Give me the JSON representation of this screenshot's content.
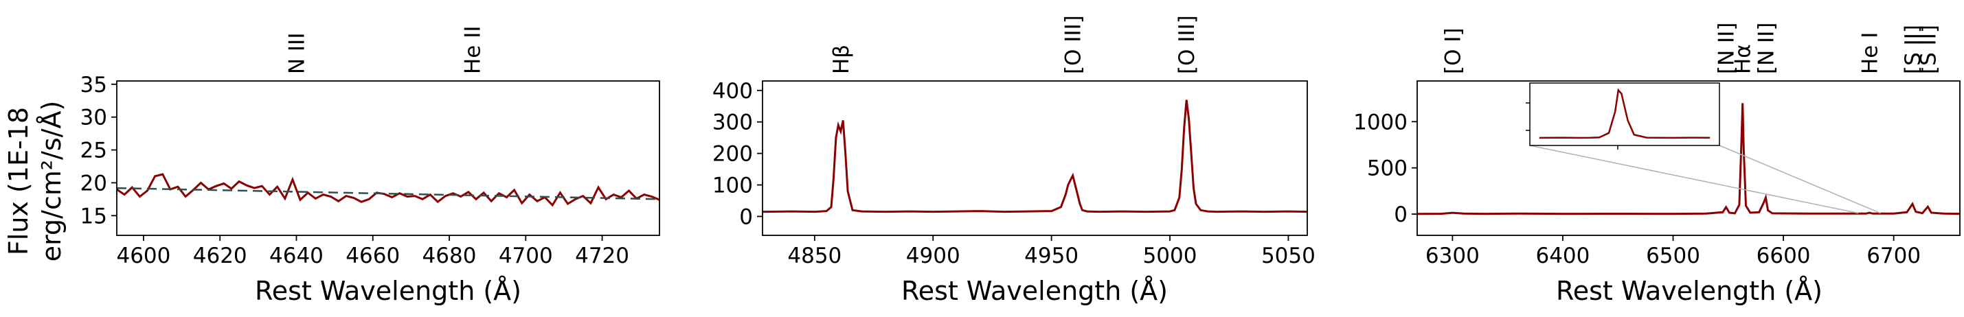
{
  "ylabel_line1": "Flux (1E-18",
  "ylabel_line2": "erg/cm²/s/Å)",
  "chart_data": [
    {
      "type": "line",
      "title": "",
      "xlabel": "Rest Wavelength (Å)",
      "ylabel": "Flux (1E-18 erg/cm²/s/Å)",
      "xlim": [
        4593,
        4735
      ],
      "ylim": [
        12,
        35.5
      ],
      "xticks": [
        4600,
        4620,
        4640,
        4660,
        4680,
        4700,
        4720
      ],
      "yticks": [
        15,
        20,
        25,
        30,
        35
      ],
      "grid": false,
      "line_labels": [
        {
          "text": "N III",
          "x": 4640
        },
        {
          "text": "He II",
          "x": 4686
        }
      ],
      "series": [
        {
          "color": "#8b0000",
          "style": "solid",
          "x": [
            4593,
            4595,
            4597,
            4599,
            4601,
            4603,
            4605,
            4607,
            4609,
            4611,
            4613,
            4615,
            4617,
            4619,
            4621,
            4623,
            4625,
            4627,
            4629,
            4631,
            4633,
            4635,
            4637,
            4639,
            4641,
            4643,
            4645,
            4647,
            4649,
            4651,
            4653,
            4655,
            4657,
            4659,
            4661,
            4663,
            4665,
            4667,
            4669,
            4671,
            4673,
            4675,
            4677,
            4679,
            4681,
            4683,
            4685,
            4687,
            4689,
            4691,
            4693,
            4695,
            4697,
            4699,
            4701,
            4703,
            4705,
            4707,
            4709,
            4711,
            4713,
            4715,
            4717,
            4719,
            4721,
            4723,
            4725,
            4727,
            4729,
            4731,
            4733,
            4735
          ],
          "y": [
            19.0,
            18.2,
            19.3,
            17.9,
            18.8,
            21.0,
            21.3,
            19.0,
            19.4,
            17.9,
            18.9,
            20.0,
            19.0,
            19.5,
            19.9,
            19.1,
            20.2,
            19.6,
            19.2,
            19.5,
            18.2,
            19.4,
            17.6,
            20.5,
            17.4,
            18.5,
            17.6,
            18.2,
            17.9,
            17.2,
            18.0,
            17.7,
            17.1,
            17.5,
            18.5,
            18.3,
            17.8,
            18.4,
            17.9,
            18.0,
            17.5,
            18.2,
            17.1,
            18.0,
            18.4,
            17.9,
            18.6,
            17.5,
            18.5,
            17.2,
            18.4,
            17.8,
            18.9,
            16.9,
            18.2,
            17.2,
            17.8,
            16.6,
            18.5,
            16.8,
            17.5,
            18.0,
            16.9,
            19.3,
            17.5,
            18.2,
            17.8,
            18.8,
            17.6,
            18.2,
            17.9,
            17.4
          ]
        },
        {
          "color": "#2f4f4f",
          "style": "dashed",
          "x": [
            4593,
            4735
          ],
          "y": [
            19.2,
            17.5
          ]
        }
      ]
    },
    {
      "type": "line",
      "title": "",
      "xlabel": "Rest Wavelength (Å)",
      "ylabel": "",
      "xlim": [
        4828,
        5058
      ],
      "ylim": [
        -60,
        430
      ],
      "xticks": [
        4850,
        4900,
        4950,
        5000,
        5050
      ],
      "yticks": [
        0,
        100,
        200,
        300,
        400
      ],
      "grid": false,
      "line_labels": [
        {
          "text": "Hβ",
          "x": 4861
        },
        {
          "text": "[O III]",
          "x": 4959
        },
        {
          "text": "[O III]",
          "x": 5007
        }
      ],
      "series": [
        {
          "color": "#8b0000",
          "style": "solid",
          "x": [
            4828,
            4840,
            4850,
            4855,
            4857,
            4858,
            4859,
            4860,
            4861,
            4862,
            4863,
            4864,
            4866,
            4870,
            4880,
            4890,
            4900,
            4910,
            4920,
            4930,
            4940,
            4950,
            4954,
            4956,
            4957,
            4958,
            4959,
            4960,
            4961,
            4962,
            4963,
            4965,
            4970,
            4980,
            4990,
            5000,
            5002,
            5004,
            5005,
            5006,
            5007,
            5008,
            5009,
            5010,
            5011,
            5013,
            5016,
            5020,
            5030,
            5040,
            5050,
            5058
          ],
          "y": [
            15,
            16,
            15,
            17,
            30,
            120,
            250,
            290,
            270,
            305,
            200,
            80,
            20,
            16,
            15,
            16,
            15,
            16,
            17,
            15,
            16,
            17,
            30,
            70,
            100,
            115,
            130,
            100,
            70,
            40,
            20,
            16,
            15,
            16,
            15,
            16,
            20,
            60,
            150,
            280,
            370,
            310,
            200,
            90,
            40,
            20,
            16,
            15,
            16,
            15,
            16,
            15
          ]
        }
      ]
    },
    {
      "type": "line",
      "title": "",
      "xlabel": "Rest Wavelength (Å)",
      "ylabel": "",
      "xlim": [
        6268,
        6760
      ],
      "ylim": [
        -230,
        1440
      ],
      "xticks": [
        6300,
        6400,
        6500,
        6600,
        6700
      ],
      "yticks": [
        0,
        500,
        1000
      ],
      "grid": false,
      "line_labels": [
        {
          "text": "[O I]",
          "x": 6300
        },
        {
          "text": "[N II]",
          "x": 6548
        },
        {
          "text": "Hα",
          "x": 6563
        },
        {
          "text": "[N II]",
          "x": 6584
        },
        {
          "text": "He I",
          "x": 6678
        },
        {
          "text": "[S II]",
          "x": 6717
        },
        {
          "text": "[S II]",
          "x": 6731
        }
      ],
      "series": [
        {
          "color": "#8b0000",
          "style": "solid",
          "x": [
            6268,
            6290,
            6300,
            6310,
            6330,
            6360,
            6400,
            6450,
            6500,
            6530,
            6545,
            6548,
            6551,
            6556,
            6560,
            6562,
            6563,
            6564,
            6566,
            6570,
            6578,
            6582,
            6584,
            6586,
            6590,
            6620,
            6660,
            6675,
            6678,
            6681,
            6700,
            6712,
            6717,
            6720,
            6726,
            6731,
            6734,
            6745,
            6760
          ],
          "y": [
            2,
            4,
            14,
            5,
            3,
            5,
            3,
            4,
            3,
            5,
            20,
            75,
            15,
            8,
            100,
            800,
            1200,
            700,
            90,
            15,
            20,
            120,
            180,
            40,
            8,
            6,
            5,
            5,
            14,
            5,
            6,
            20,
            110,
            25,
            10,
            80,
            15,
            5,
            3
          ]
        }
      ],
      "inset": {
        "x": [
          6538,
          6545,
          6550,
          6554,
          6557,
          6560,
          6562,
          6563,
          6564,
          6566,
          6568,
          6572,
          6576,
          6580,
          6586,
          6592
        ],
        "y": [
          5,
          8,
          5,
          6,
          10,
          60,
          300,
          540,
          500,
          200,
          40,
          8,
          6,
          5,
          8,
          6
        ],
        "xlim": [
          6535,
          6595
        ],
        "ylim": [
          -80,
          620
        ]
      }
    }
  ]
}
